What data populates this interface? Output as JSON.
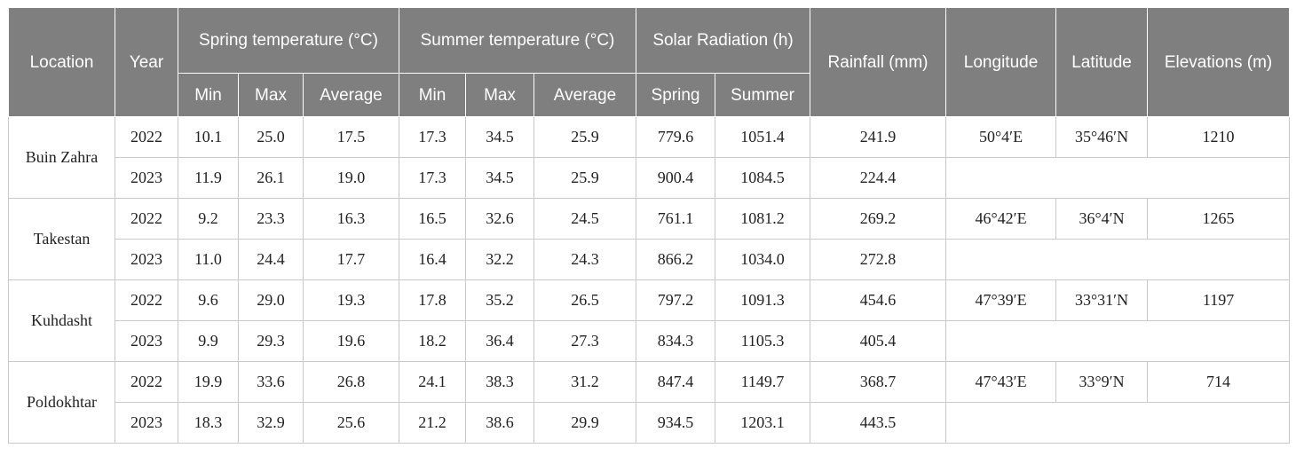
{
  "headers": {
    "location": "Location",
    "year": "Year",
    "spring_temp": "Spring temperature (°C)",
    "summer_temp": "Summer temperature (°C)",
    "solar": "Solar Radiation (h)",
    "rainfall": "Rainfall (mm)",
    "longitude": "Longitude",
    "latitude": "Latitude",
    "elevation": "Elevations (m)",
    "min": "Min",
    "max": "Max",
    "average": "Average",
    "spring": "Spring",
    "summer": "Summer"
  },
  "rows": [
    {
      "location": "Buin Zahra",
      "longitude": "50°4′E",
      "latitude": "35°46′N",
      "elevation": "1210",
      "years": [
        {
          "year": "2022",
          "sp_min": "10.1",
          "sp_max": "25.0",
          "sp_avg": "17.5",
          "su_min": "17.3",
          "su_max": "34.5",
          "su_avg": "25.9",
          "solar_spring": "779.6",
          "solar_summer": "1051.4",
          "rainfall": "241.9"
        },
        {
          "year": "2023",
          "sp_min": "11.9",
          "sp_max": "26.1",
          "sp_avg": "19.0",
          "su_min": "17.3",
          "su_max": "34.5",
          "su_avg": "25.9",
          "solar_spring": "900.4",
          "solar_summer": "1084.5",
          "rainfall": "224.4"
        }
      ]
    },
    {
      "location": "Takestan",
      "longitude": "46°42′E",
      "latitude": "36°4′N",
      "elevation": "1265",
      "years": [
        {
          "year": "2022",
          "sp_min": "9.2",
          "sp_max": "23.3",
          "sp_avg": "16.3",
          "su_min": "16.5",
          "su_max": "32.6",
          "su_avg": "24.5",
          "solar_spring": "761.1",
          "solar_summer": "1081.2",
          "rainfall": "269.2"
        },
        {
          "year": "2023",
          "sp_min": "11.0",
          "sp_max": "24.4",
          "sp_avg": "17.7",
          "su_min": "16.4",
          "su_max": "32.2",
          "su_avg": "24.3",
          "solar_spring": "866.2",
          "solar_summer": "1034.0",
          "rainfall": "272.8"
        }
      ]
    },
    {
      "location": "Kuhdasht",
      "longitude": "47°39′E",
      "latitude": "33°31′N",
      "elevation": "1197",
      "years": [
        {
          "year": "2022",
          "sp_min": "9.6",
          "sp_max": "29.0",
          "sp_avg": "19.3",
          "su_min": "17.8",
          "su_max": "35.2",
          "su_avg": "26.5",
          "solar_spring": "797.2",
          "solar_summer": "1091.3",
          "rainfall": "454.6"
        },
        {
          "year": "2023",
          "sp_min": "9.9",
          "sp_max": "29.3",
          "sp_avg": "19.6",
          "su_min": "18.2",
          "su_max": "36.4",
          "su_avg": "27.3",
          "solar_spring": "834.3",
          "solar_summer": "1105.3",
          "rainfall": "405.4"
        }
      ]
    },
    {
      "location": "Poldokhtar",
      "longitude": "47°43′E",
      "latitude": "33°9′N",
      "elevation": "714",
      "years": [
        {
          "year": "2022",
          "sp_min": "19.9",
          "sp_max": "33.6",
          "sp_avg": "26.8",
          "su_min": "24.1",
          "su_max": "38.3",
          "su_avg": "31.2",
          "solar_spring": "847.4",
          "solar_summer": "1149.7",
          "rainfall": "368.7"
        },
        {
          "year": "2023",
          "sp_min": "18.3",
          "sp_max": "32.9",
          "sp_avg": "25.6",
          "su_min": "21.2",
          "su_max": "38.6",
          "su_avg": "29.9",
          "solar_spring": "934.5",
          "solar_summer": "1203.1",
          "rainfall": "443.5"
        }
      ]
    }
  ]
}
